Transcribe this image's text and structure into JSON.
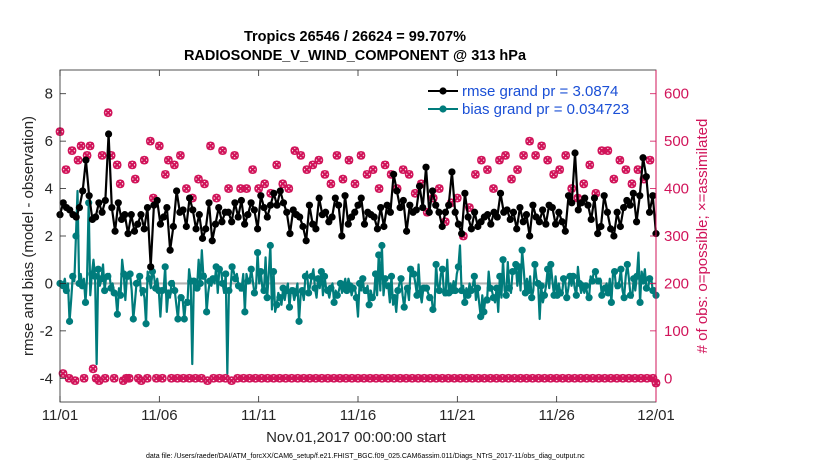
{
  "chart_data": {
    "type": "line",
    "title": "Tropics 26546 / 26624 = 99.707%",
    "subtitle": "RADIOSONDE_V_WIND_COMPONENT @ 313 hPa",
    "xlabel": "Nov.01,2017 00:00:00 start",
    "ylabel_left": "rmse and bias (model - observation)",
    "ylabel_right": "# of obs: o=possible; ×=assimilated",
    "footer": "data file: /Users/raeder/DAI/ATM_forcXX/CAM6_setup/f.e21.FHIST_BGC.f09_025.CAM6assim.011/Diags_NTrS_2017-11/obs_diag_output.nc",
    "x_tick_labels": [
      "11/01",
      "11/06",
      "11/11",
      "11/16",
      "11/21",
      "11/26",
      "12/01"
    ],
    "x_tick_days": [
      0,
      5,
      10,
      15,
      20,
      25,
      30
    ],
    "xlim": [
      0,
      30
    ],
    "ylim_left": [
      -5,
      9
    ],
    "yticks_left": [
      -4,
      -2,
      0,
      2,
      4,
      6,
      8
    ],
    "ylim_right": [
      -50,
      650
    ],
    "yticks_right": [
      0,
      100,
      200,
      300,
      400,
      500,
      600
    ],
    "legend_position": "top-right",
    "colors": {
      "rmse": "#000000",
      "bias": "#007c7c",
      "obs": "#d1145a",
      "zero_line": "#b3b3b3",
      "legend_text": "#1a4fd6",
      "right_axis": "#d1145a"
    },
    "series": [
      {
        "name": "rmse grand pr = 3.0874",
        "axis": "left",
        "style": "line+marker",
        "values": [
          2.9,
          3.4,
          3.2,
          3.1,
          2.9,
          2.8,
          3.2,
          3.9,
          5.2,
          3.7,
          2.7,
          2.8,
          3.4,
          3.0,
          3.5,
          6.3,
          3.2,
          2.2,
          3.4,
          2.7,
          2.9,
          2.1,
          2.9,
          2.2,
          2.5,
          2.9,
          2.3,
          3.2,
          0.7,
          3.3,
          3.5,
          2.5,
          2.8,
          3.2,
          1.4,
          2.4,
          3.9,
          3.0,
          3.1,
          2.4,
          3.6,
          3.1,
          2.3,
          2.9,
          1.9,
          2.3,
          3.4,
          1.8,
          2.5,
          3.2,
          2.6,
          3.0,
          3.0,
          2.6,
          3.4,
          2.8,
          3.5,
          2.5,
          2.9,
          3.4,
          3.1,
          2.3,
          3.7,
          3.2,
          2.8,
          3.3,
          3.8,
          3.3,
          3.9,
          3.4,
          3.0,
          2.1,
          3.1,
          2.9,
          2.8,
          2.4,
          1.8,
          3.3,
          2.5,
          2.3,
          3.6,
          2.9,
          3.0,
          2.6,
          2.8,
          3.6,
          3.3,
          2.0,
          3.7,
          2.5,
          2.8,
          3.0,
          3.3,
          3.6,
          2.5,
          3.0,
          2.9,
          2.8,
          2.3,
          3.2,
          2.4,
          3.3,
          3.0,
          4.6,
          3.9,
          3.2,
          3.5,
          2.2,
          3.3,
          3.0,
          3.1,
          4.1,
          3.2,
          4.9,
          3.0,
          3.9,
          3.3,
          3.0,
          2.4,
          3.0,
          3.3,
          4.7,
          3.0,
          2.5,
          2.1,
          3.8,
          2.8,
          2.3,
          3.0,
          2.4,
          2.6,
          2.8,
          2.9,
          2.5,
          3.0,
          2.8,
          3.8,
          3.0,
          3.1,
          2.7,
          3.0,
          2.3,
          3.2,
          2.6,
          2.9,
          2.0,
          3.3,
          2.8,
          2.6,
          3.1,
          2.5,
          3.3,
          3.2,
          2.5,
          3.0,
          2.6,
          2.2,
          3.7,
          3.4,
          5.5,
          3.1,
          3.4,
          3.6,
          3.3,
          2.7,
          3.6,
          2.1,
          2.4,
          3.7,
          3.0,
          2.3,
          2.0,
          3.0,
          2.4,
          3.2,
          3.5,
          3.3,
          3.8,
          2.6,
          3.7,
          5.3,
          4.5,
          3.0,
          3.7,
          2.1
        ],
        "marker_count": 182
      },
      {
        "name": "bias grand pr = 0.034723",
        "axis": "left",
        "style": "line+marker",
        "values": [
          0.0,
          -0.1,
          -0.1,
          0.2,
          -0.3,
          0.0,
          -1.6,
          -0.7,
          0.3,
          0.1,
          2.0,
          3.9,
          0.0,
          0.4,
          -0.1,
          0.2,
          -0.8,
          0.3,
          3.4,
          -0.5,
          0.4,
          1.0,
          0.3,
          -3.4,
          0.6,
          -0.1,
          0.2,
          0.8,
          -0.3,
          0.3,
          0.3,
          0.4,
          -0.2,
          0.0,
          -0.4,
          -0.5,
          -1.3,
          -0.2,
          -0.5,
          1.0,
          0.4,
          -0.7,
          0.3,
          0.2,
          0.4,
          -0.3,
          -1.5,
          -0.8,
          0.0,
          0.2,
          0.3,
          -0.5,
          -0.3,
          -0.6,
          -1.7,
          0.5,
          0.2,
          -0.2,
          0.5,
          0.3,
          -0.2,
          0.2,
          -0.3,
          -1.4,
          -0.3,
          -0.3,
          0.7,
          -1.2,
          -0.4,
          -0.6,
          0.0,
          0.1,
          -0.3,
          -0.9,
          -1.5,
          -0.5,
          -0.6,
          -0.7,
          -1.5,
          -0.7,
          -0.8,
          0.6,
          0.1,
          -3.4,
          0.1,
          -0.1,
          -0.2,
          1.0,
          0.0,
          1.4,
          0.3,
          0.4,
          -1.2,
          -0.4,
          0.1,
          -0.1,
          0.2,
          0.0,
          0.7,
          -0.4,
          0.6,
          0.6,
          0.0,
          -0.4,
          0.4,
          -3.8,
          -0.3,
          -0.2,
          0.7,
          0.5,
          0.2,
          0.4,
          -0.1,
          -0.3,
          -0.2,
          0.4,
          -1.2,
          0.4,
          0.1,
          0.1,
          0.6,
          0.1,
          -0.4,
          -0.2,
          1.3,
          0.0,
          0.5,
          -0.2,
          -0.3,
          1.1,
          -0.6,
          0.4,
          1.6,
          -1.1,
          0.5,
          -1.2,
          -0.9,
          -0.4,
          -0.6,
          -0.9,
          -0.2,
          -0.7,
          -0.3,
          0.0,
          -1.0,
          -0.2,
          -0.3,
          -0.7,
          -0.4,
          0.0,
          -1.6,
          -0.5,
          -0.3,
          -0.7,
          0.3,
          0.5,
          -0.4,
          -0.1,
          0.3,
          0.6,
          -0.2,
          -0.6,
          0.2,
          -0.2,
          0.5,
          -0.5,
          0.3,
          -0.2,
          -0.3,
          -0.6,
          -0.2,
          0.0,
          -0.8,
          -0.3,
          -0.5,
          -0.3,
          0.0,
          -0.4,
          -0.1,
          0.2,
          -0.3,
          0.2,
          -0.1,
          -0.5,
          -0.2,
          -0.2,
          -0.6,
          -1.4,
          0.0,
          -0.3,
          0.2,
          -0.4,
          -0.3,
          -0.1,
          -0.9,
          -0.3,
          -0.6,
          -0.6,
          0.4,
          -0.5,
          1.2,
          -0.3,
          1.6,
          -0.5,
          0.2,
          -0.2,
          -0.1,
          -0.8,
          0.3,
          -0.9,
          -0.6,
          -1.2,
          -0.3,
          0.0,
          0.2,
          -0.5,
          -1.0,
          -0.3,
          -0.2,
          -0.7,
          0.6,
          0.3,
          0.4,
          0.0,
          -0.5,
          0.8,
          -0.4,
          -0.8,
          -0.2,
          -0.1,
          -0.2,
          -0.4,
          -0.6,
          -0.5,
          -1.1,
          -1.0,
          0.8,
          -0.1,
          -0.3,
          0.4,
          0.6,
          -0.5,
          -0.4,
          1.0,
          -0.4,
          0.0,
          -0.3,
          0.1,
          -0.3,
          0.4,
          0.7,
          1.6,
          -0.3,
          -0.1,
          -0.8,
          -0.2,
          -0.5,
          0.0,
          -0.3,
          -0.1,
          0.3,
          -0.7,
          -0.2,
          -0.8,
          -1.4,
          -0.5,
          -1.2,
          -0.6,
          -0.7,
          0.5,
          -0.2,
          -0.3,
          -0.6,
          -0.8,
          -0.2,
          -1.2,
          0.3,
          -0.6,
          1.0,
          -0.3,
          -0.5,
          0.9,
          -0.2,
          -0.4,
          0.5,
          0.5,
          0.8,
          -0.1,
          0.7,
          -0.3,
          1.4,
          0.6,
          -0.4,
          0.2,
          -0.3,
          0.3,
          -0.6,
          -0.3,
          0.8,
          0.2,
          0.0,
          -1.5,
          -0.1,
          -0.8,
          -0.5,
          -0.1,
          0.6,
          -0.2,
          0.8,
          0.1,
          -0.5,
          0.3,
          -0.5,
          0.0,
          -0.4,
          -0.5,
          0.2,
          0.1,
          -0.6,
          -0.2,
          0.3,
          -0.1,
          0.3,
          -0.2,
          -0.5,
          0.7,
          0.0,
          -0.4,
          -0.1,
          -0.4,
          -0.1,
          -0.5,
          -0.6,
          0.3,
          0.1,
          0.5,
          0.5,
          0.0,
          0.1,
          0.2,
          -0.5,
          -0.3,
          -0.2,
          0.0,
          -0.4,
          0.2,
          -0.8,
          0.4,
          0.5,
          -0.2,
          -0.1,
          0.1,
          0.6,
          -0.3,
          -0.6,
          0.3,
          0.8,
          0.2,
          -0.5,
          -0.6,
          0.2,
          -0.3,
          0.3,
          1.3,
          -0.8,
          0.5,
          0.1,
          0.6,
          -0.2,
          -0.2,
          0.2,
          0.2,
          -0.3,
          -0.2,
          -0.5
        ],
        "marker_count": 182
      },
      {
        "name": "obs possible",
        "axis": "right",
        "style": "marker-only",
        "values": [
          520,
          10,
          440,
          0,
          480,
          -5,
          460,
          490,
          0,
          470,
          490,
          20,
          0,
          -5,
          470,
          0,
          560,
          470,
          0,
          450,
          410,
          -5,
          0,
          0,
          450,
          420,
          0,
          -5,
          460,
          0,
          500,
          380,
          0,
          490,
          0,
          430,
          460,
          0,
          450,
          0,
          470,
          0,
          400,
          0,
          380,
          0,
          420,
          0,
          410,
          -5,
          490,
          0,
          380,
          0,
          480,
          0,
          400,
          -5,
          470,
          0,
          400,
          0,
          400,
          0,
          440,
          0,
          400,
          0,
          410,
          0,
          390,
          0,
          450,
          0,
          410,
          0,
          400,
          0,
          480,
          0,
          470,
          0,
          440,
          0,
          450,
          0,
          460,
          0,
          430,
          0,
          410,
          0,
          470,
          0,
          420,
          0,
          460,
          0,
          410,
          0,
          470,
          0,
          430,
          0,
          440,
          0,
          400,
          0,
          450,
          0,
          430,
          0,
          400,
          0,
          440,
          0,
          430,
          0,
          390,
          0,
          410,
          0,
          350,
          0,
          380,
          0,
          400,
          0,
          330,
          0,
          370,
          0,
          380,
          0,
          300,
          0,
          360,
          0,
          430,
          0,
          460,
          0,
          440,
          0,
          400,
          0,
          460,
          0,
          470,
          0,
          420,
          0,
          440,
          0,
          470,
          0,
          500,
          0,
          470,
          0,
          490,
          0,
          460,
          0,
          430,
          0,
          440,
          0,
          470,
          0,
          400,
          0,
          380,
          0,
          410,
          0,
          450,
          0,
          390,
          0,
          480,
          0,
          480,
          0,
          420,
          0,
          460,
          0,
          440,
          0,
          410,
          0,
          440,
          0,
          420,
          0,
          460,
          0,
          -10
        ],
        "marker_count": 120
      },
      {
        "name": "obs assimilated",
        "axis": "right",
        "style": "marker-only",
        "values": [
          520,
          10,
          440,
          0,
          480,
          -5,
          460,
          490,
          0,
          470,
          490,
          20,
          0,
          -5,
          470,
          0,
          560,
          470,
          0,
          450,
          410,
          -5,
          0,
          0,
          450,
          420,
          0,
          -5,
          460,
          0,
          500,
          380,
          0,
          490,
          0,
          430,
          460,
          0,
          450,
          0,
          470,
          0,
          400,
          0,
          380,
          0,
          420,
          0,
          410,
          -5,
          490,
          0,
          380,
          0,
          480,
          0,
          400,
          -5,
          470,
          0,
          400,
          0,
          400,
          0,
          440,
          0,
          400,
          0,
          410,
          0,
          390,
          0,
          450,
          0,
          410,
          0,
          400,
          0,
          480,
          0,
          470,
          0,
          440,
          0,
          450,
          0,
          460,
          0,
          430,
          0,
          410,
          0,
          470,
          0,
          420,
          0,
          460,
          0,
          410,
          0,
          470,
          0,
          430,
          0,
          440,
          0,
          400,
          0,
          450,
          0,
          430,
          0,
          400,
          0,
          440,
          0,
          430,
          0,
          390,
          0,
          410,
          0,
          350,
          0,
          380,
          0,
          400,
          0,
          330,
          0,
          370,
          0,
          380,
          0,
          300,
          0,
          360,
          0,
          430,
          0,
          460,
          0,
          440,
          0,
          400,
          0,
          460,
          0,
          470,
          0,
          420,
          0,
          440,
          0,
          470,
          0,
          500,
          0,
          470,
          0,
          490,
          0,
          460,
          0,
          430,
          0,
          440,
          0,
          470,
          0,
          400,
          0,
          380,
          0,
          410,
          0,
          450,
          0,
          390,
          0,
          480,
          0,
          480,
          0,
          420,
          0,
          460,
          0,
          440,
          0,
          410,
          0,
          440,
          0,
          420,
          0,
          460,
          0,
          -10
        ]
      }
    ]
  }
}
